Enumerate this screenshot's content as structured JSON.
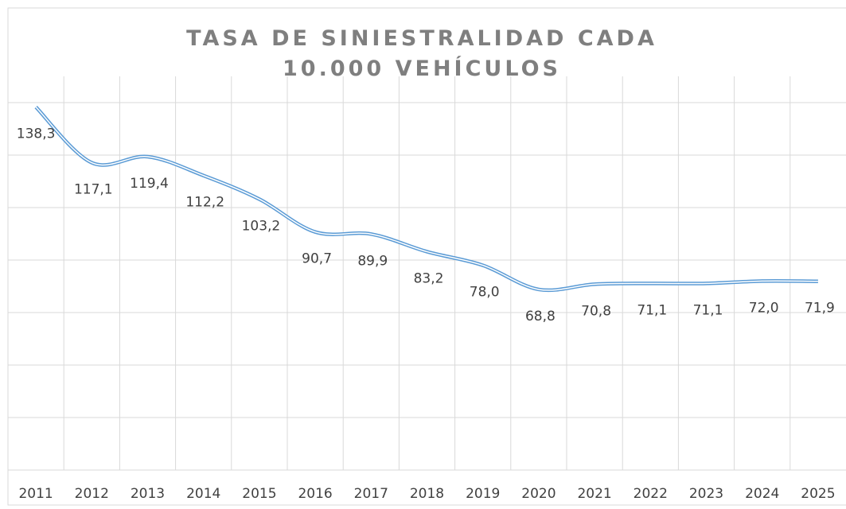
{
  "chart_data": {
    "type": "line",
    "title": "TASA DE SINIESTRALIDAD CADA 10.000 VEHÍCULOS",
    "categories": [
      "2011",
      "2012",
      "2013",
      "2014",
      "2015",
      "2016",
      "2017",
      "2018",
      "2019",
      "2020",
      "2021",
      "2022",
      "2023",
      "2024",
      "2025"
    ],
    "series": [
      {
        "color": "#5b9bd5",
        "values": [
          138.3,
          117.1,
          119.4,
          112.2,
          103.2,
          90.7,
          89.9,
          83.2,
          78.0,
          68.8,
          70.8,
          71.1,
          71.1,
          72.0,
          71.9
        ],
        "value_labels": [
          "138,3",
          "117,1",
          "119,4",
          "112,2",
          "103,2",
          "90,7",
          "89,9",
          "83,2",
          "78,0",
          "68,8",
          "70,8",
          "71,1",
          "71,1",
          "72,0",
          "71,9"
        ]
      }
    ],
    "ylim": [
      0,
      150
    ],
    "yticks": [
      0,
      20,
      40,
      60,
      80,
      100,
      120,
      140
    ],
    "grid": true
  }
}
